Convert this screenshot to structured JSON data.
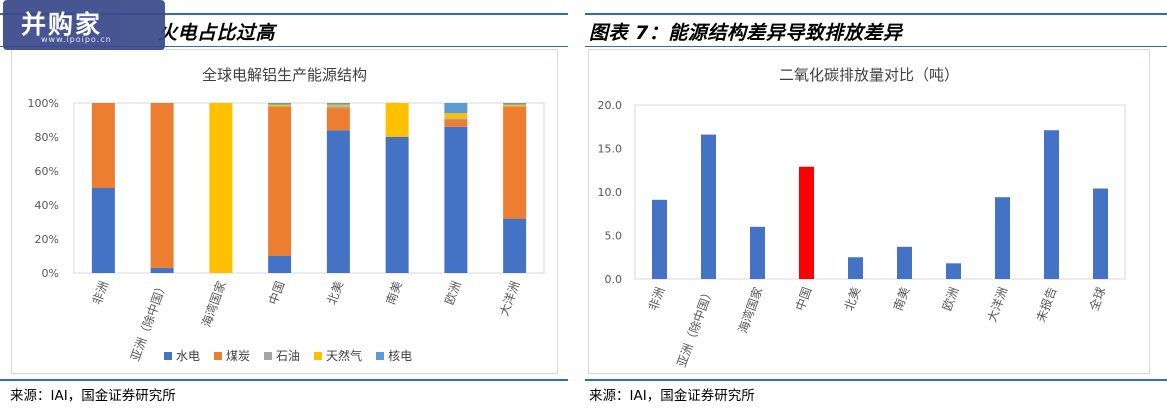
{
  "left": {
    "header_title": "图表6：各洲电解铝电力能源中火电占比过高",
    "header_visible": "火电占比过高",
    "source": "来源：IAI，国金证券研究所"
  },
  "right": {
    "header_title": "图表 7：能源结构差异导致排放差异",
    "source": "来源：IAI，国金证券研究所"
  },
  "logo": {
    "text": "并购家",
    "sub": "www.ipoipo.cn"
  },
  "colors": {
    "水电": "#4472C4",
    "煤炭": "#ED7D31",
    "石油": "#A5A5A5",
    "天然气": "#FFC000",
    "核电": "#5B9BD5",
    "bar": "#4472C4",
    "highlight": "#FF0000",
    "rule": "#2a6fbf"
  },
  "chart_data": [
    {
      "type": "bar",
      "stacked": "percent",
      "title": "全球电解铝生产能源结构",
      "categories": [
        "非洲",
        "亚洲（除中国）",
        "海湾国家",
        "中国",
        "北美",
        "南美",
        "欧洲",
        "大洋洲"
      ],
      "series": [
        {
          "name": "水电",
          "values": [
            50,
            3,
            0,
            10,
            84,
            80,
            86,
            32
          ]
        },
        {
          "name": "煤炭",
          "values": [
            50,
            97,
            0,
            88,
            13,
            0,
            4,
            66
          ]
        },
        {
          "name": "石油",
          "values": [
            0,
            0,
            0,
            0,
            1,
            0,
            1,
            0
          ]
        },
        {
          "name": "天然气",
          "values": [
            0,
            0,
            100,
            1,
            1,
            20,
            3,
            1
          ]
        },
        {
          "name": "核电",
          "values": [
            0,
            0,
            0,
            1,
            1,
            0,
            6,
            1
          ]
        }
      ],
      "yticks": [
        "0%",
        "20%",
        "40%",
        "60%",
        "80%",
        "100%"
      ],
      "ylim": [
        0,
        100
      ],
      "legend": "bottom"
    },
    {
      "type": "bar",
      "title": "二氧化碳排放量对比（吨）",
      "categories": [
        "非洲",
        "亚洲（除中国）",
        "海湾国家",
        "中国",
        "北美",
        "南美",
        "欧洲",
        "大洋洲",
        "未报告",
        "全球"
      ],
      "values": [
        9.1,
        16.6,
        6.0,
        12.9,
        2.5,
        3.7,
        1.8,
        9.4,
        17.1,
        10.4
      ],
      "highlight": "中国",
      "yticks": [
        "0.0",
        "5.0",
        "10.0",
        "15.0",
        "20.0"
      ],
      "ylim": [
        0,
        20
      ]
    }
  ]
}
